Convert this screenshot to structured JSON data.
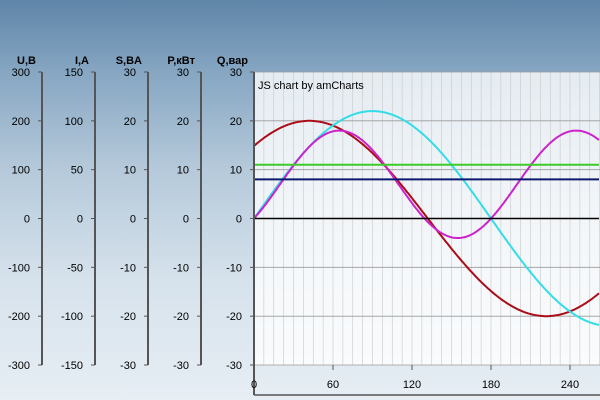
{
  "credit": "JS chart by amCharts",
  "chart_data": {
    "type": "line",
    "title": "",
    "grid": true,
    "x": {
      "range": [
        0,
        270
      ],
      "ticks": [
        0,
        60,
        120,
        180,
        240
      ]
    },
    "y_axes": [
      {
        "label": "U,B",
        "range": [
          -300,
          300
        ],
        "ticks": [
          300,
          200,
          100,
          0,
          -100,
          -200,
          -300
        ]
      },
      {
        "label": "I,A",
        "range": [
          -150,
          150
        ],
        "ticks": [
          150,
          100,
          50,
          0,
          -50,
          -100,
          -150
        ]
      },
      {
        "label": "S,BA",
        "range": [
          -30,
          30
        ],
        "ticks": [
          30,
          20,
          10,
          0,
          -10,
          -20,
          -30
        ]
      },
      {
        "label": "P,кВт",
        "range": [
          -30,
          30
        ],
        "ticks": [
          30,
          20,
          10,
          0,
          -10,
          -20,
          -30
        ]
      },
      {
        "label": "Q,вар",
        "range": [
          -30,
          30
        ],
        "ticks": [
          30,
          20,
          10,
          0,
          -10,
          -20,
          -30
        ]
      }
    ],
    "plot_range": [
      -30,
      30
    ],
    "series": [
      {
        "color": "#aa0d18",
        "shape": "sine",
        "amplitude": 20,
        "period": 360,
        "peak_at": 42
      },
      {
        "color": "#33dde8",
        "shape": "sine",
        "amplitude": 22,
        "period": 360,
        "peak_at": 90
      },
      {
        "color": "#cc22cc",
        "shape": "power",
        "offset": 7,
        "amplitude": 11,
        "period": 180,
        "zero_crossing": 0
      },
      {
        "color": "#3ccc2a",
        "shape": "constant",
        "value": 11
      },
      {
        "color": "#0b1a70",
        "shape": "constant",
        "value": 8
      },
      {
        "color": "#000000",
        "shape": "constant",
        "value": 0
      }
    ]
  }
}
